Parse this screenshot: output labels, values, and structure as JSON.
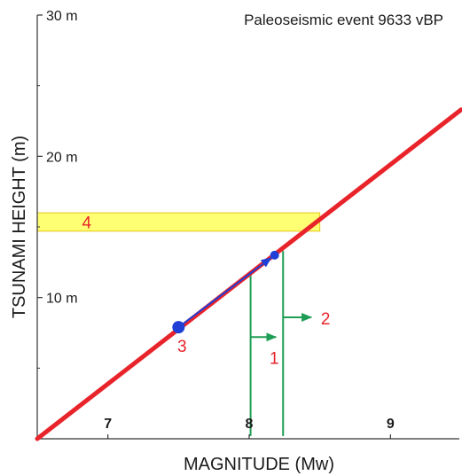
{
  "chart_data": {
    "type": "line",
    "title": "Paleoseismic event 9633 vBP",
    "xlabel": "MAGNITUDE (Mw)",
    "ylabel": "TSUNAMI HEIGHT (m)",
    "xlim": [
      6.5,
      9.5
    ],
    "ylim": [
      0,
      30
    ],
    "x_ticks": [
      {
        "value": 7,
        "label": "7"
      },
      {
        "value": 8,
        "label": "8"
      },
      {
        "value": 9,
        "label": "9"
      }
    ],
    "y_ticks": [
      {
        "value": 10,
        "label": "10 m"
      },
      {
        "value": 20,
        "label": "20 m"
      },
      {
        "value": 30,
        "label": "30 m"
      }
    ],
    "grid": false,
    "series": [
      {
        "values_xy": [
          [
            6.5,
            0.0
          ],
          [
            9.5,
            23.3
          ]
        ],
        "color": "#e8232a"
      }
    ],
    "band": {
      "y": [
        14.7,
        16.0
      ],
      "color": "#ffff66",
      "label": "4"
    },
    "points": [
      {
        "x": 7.5,
        "y": 7.9,
        "label": "3"
      },
      {
        "x": 8.18,
        "y": 13.0
      }
    ],
    "arrow": {
      "from": [
        7.5,
        7.9
      ],
      "to": [
        8.18,
        13.0
      ],
      "color": "#1f3fd6"
    },
    "vlines": [
      {
        "x": 8.01,
        "y": [
          0.2,
          11.8
        ]
      },
      {
        "x": 8.24,
        "y": [
          0.2,
          13.3
        ]
      }
    ],
    "green_arrows": [
      {
        "from": [
          8.01,
          7.2
        ],
        "to": [
          8.19,
          7.2
        ],
        "label": "1"
      },
      {
        "from": [
          8.24,
          8.6
        ],
        "to": [
          8.44,
          8.6
        ],
        "label": "2"
      }
    ],
    "colors": {
      "line": "#e8232a",
      "marker": "#1f3fd6",
      "vline": "#1e9e55",
      "band": "#ffff66",
      "label": "#e8232a"
    }
  }
}
